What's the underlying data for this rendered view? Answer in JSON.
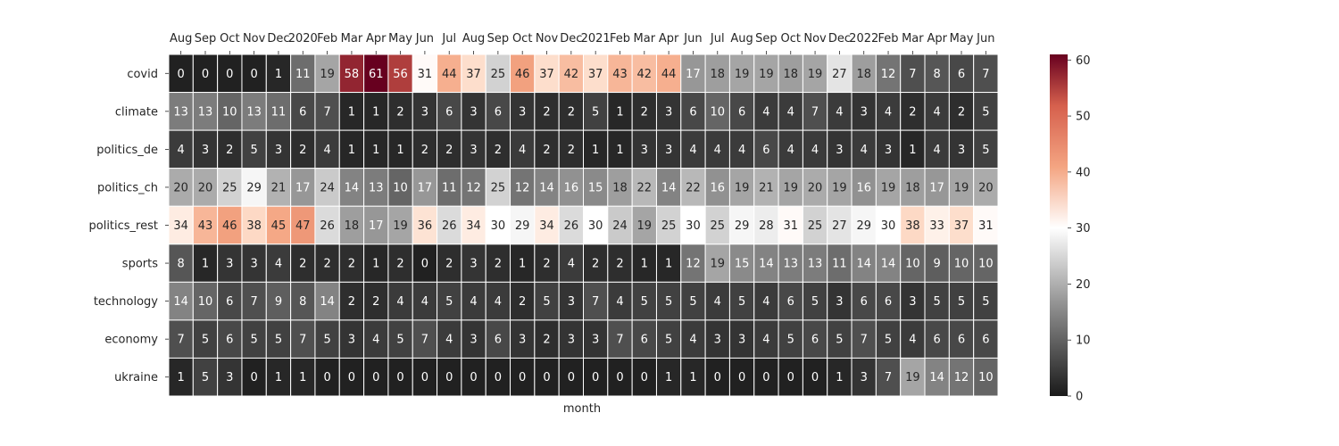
{
  "chart_data": {
    "type": "heatmap",
    "title": "",
    "xlabel": "month",
    "ylabel": "",
    "x_tick_position": "top",
    "x_categories": [
      "Aug",
      "Sep",
      "Oct",
      "Nov",
      "Dec",
      "2020",
      "Feb",
      "Mar",
      "Apr",
      "May",
      "Jun",
      "Jul",
      "Aug",
      "Sep",
      "Oct",
      "Nov",
      "Dec",
      "2021",
      "Feb",
      "Mar",
      "Apr",
      "Jun",
      "Jul",
      "Aug",
      "Sep",
      "Oct",
      "Nov",
      "Dec",
      "2022",
      "Feb",
      "Mar",
      "Apr",
      "May",
      "Jun"
    ],
    "y_categories": [
      "covid",
      "climate",
      "politics_de",
      "politics_ch",
      "politics_rest",
      "sports",
      "technology",
      "economy",
      "ukraine"
    ],
    "values": [
      [
        0,
        0,
        0,
        0,
        1,
        11,
        19,
        58,
        61,
        56,
        31,
        44,
        37,
        25,
        46,
        37,
        42,
        37,
        43,
        42,
        44,
        17,
        18,
        19,
        19,
        18,
        19,
        27,
        18,
        12,
        7,
        8,
        6,
        7
      ],
      [
        13,
        13,
        10,
        13,
        11,
        6,
        7,
        1,
        1,
        2,
        3,
        6,
        3,
        6,
        3,
        2,
        2,
        5,
        1,
        2,
        3,
        6,
        10,
        6,
        4,
        4,
        7,
        4,
        3,
        4,
        2,
        4,
        2,
        5
      ],
      [
        4,
        3,
        2,
        5,
        3,
        2,
        4,
        1,
        1,
        1,
        2,
        2,
        3,
        2,
        4,
        2,
        2,
        1,
        1,
        3,
        3,
        4,
        4,
        4,
        6,
        4,
        4,
        3,
        4,
        3,
        1,
        4,
        3,
        5
      ],
      [
        20,
        20,
        25,
        29,
        21,
        17,
        24,
        14,
        13,
        10,
        17,
        11,
        12,
        25,
        12,
        14,
        16,
        15,
        18,
        22,
        14,
        22,
        16,
        19,
        21,
        19,
        20,
        19,
        16,
        19,
        18,
        17,
        19,
        20
      ],
      [
        34,
        43,
        46,
        38,
        45,
        47,
        26,
        18,
        17,
        19,
        36,
        26,
        34,
        30,
        29,
        34,
        26,
        30,
        24,
        19,
        25,
        30,
        25,
        29,
        28,
        31,
        25,
        27,
        29,
        30,
        38,
        33,
        37,
        31
      ],
      [
        8,
        1,
        3,
        3,
        4,
        2,
        2,
        2,
        1,
        2,
        0,
        2,
        3,
        2,
        1,
        2,
        4,
        2,
        2,
        1,
        1,
        12,
        19,
        15,
        14,
        13,
        13,
        11,
        14,
        14,
        10,
        9,
        10,
        10
      ],
      [
        14,
        10,
        6,
        7,
        9,
        8,
        14,
        2,
        2,
        4,
        4,
        5,
        4,
        4,
        2,
        5,
        3,
        7,
        4,
        5,
        5,
        5,
        4,
        5,
        4,
        6,
        5,
        3,
        6,
        6,
        3,
        5,
        5,
        5
      ],
      [
        7,
        5,
        6,
        5,
        5,
        7,
        5,
        3,
        4,
        5,
        7,
        4,
        3,
        6,
        3,
        2,
        3,
        3,
        7,
        6,
        5,
        4,
        3,
        3,
        4,
        5,
        6,
        5,
        7,
        5,
        4,
        6,
        6,
        6
      ],
      [
        1,
        5,
        3,
        0,
        1,
        1,
        0,
        0,
        0,
        0,
        0,
        0,
        0,
        0,
        0,
        0,
        0,
        0,
        0,
        0,
        1,
        1,
        0,
        0,
        0,
        0,
        0,
        1,
        3,
        7,
        19,
        14,
        12,
        10
      ]
    ],
    "colormap": "RdGy_r",
    "color_center": 30,
    "vmin": 0,
    "vmax": 61,
    "colorbar_ticks": [
      0,
      10,
      20,
      30,
      40,
      50,
      60
    ],
    "colorbar_tick_labels": [
      "0",
      "10",
      "20",
      "30",
      "40",
      "50",
      "60"
    ],
    "annotations": true,
    "grid_lines_color": "#ffffff"
  }
}
